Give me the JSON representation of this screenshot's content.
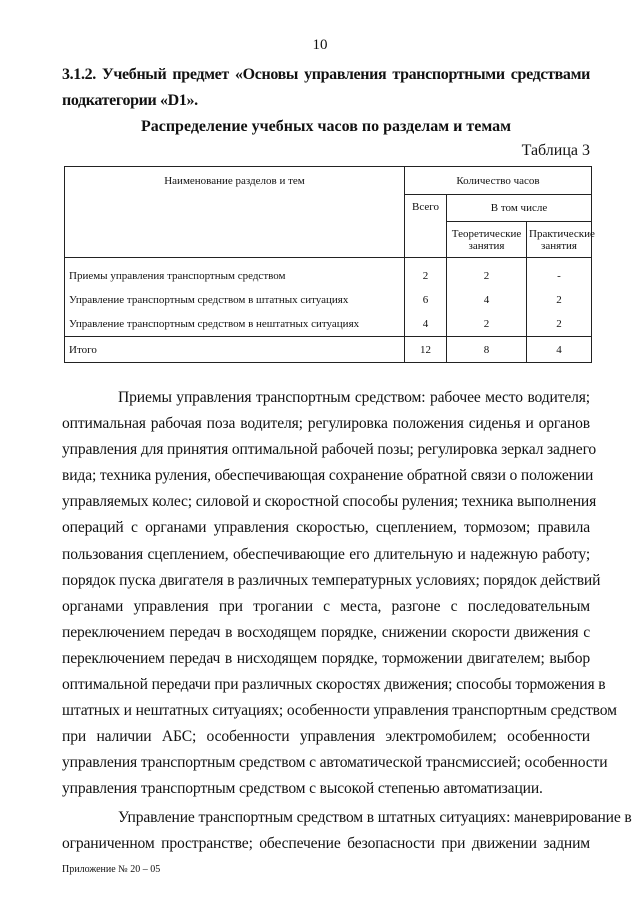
{
  "page_number": "10",
  "heading_lines": [
    "3.1.2. Учебный предмет «Основы управления транспортными средствами",
    "подкатегории «D1»."
  ],
  "subheading": "Распределение учебных часов по разделам и темам",
  "table_label": "Таблица 3",
  "table": {
    "col_name": "Наименование разделов и тем",
    "col_hours": "Количество часов",
    "col_total": "Всего",
    "col_including": "В том числе",
    "col_theory": "Теоретические занятия",
    "col_practice": "Практические занятия",
    "rows": [
      {
        "name": "Приемы управления транспортным средством",
        "total": "2",
        "theory": "2",
        "practice": "-"
      },
      {
        "name": "Управление транспортным средством в штатных ситуациях",
        "total": "6",
        "theory": "4",
        "practice": "2"
      },
      {
        "name": "Управление транспортным средством в нештатных ситуациях",
        "total": "4",
        "theory": "2",
        "practice": "2"
      }
    ],
    "total_row": {
      "name": "Итого",
      "total": "12",
      "theory": "8",
      "practice": "4"
    }
  },
  "paragraphs": [
    [
      "Приемы управления транспортным средством: рабочее место водителя;",
      "оптимальная рабочая поза водителя; регулировка положения сиденья и органов",
      "управления для принятия оптимальной рабочей позы; регулировка зеркал заднего",
      "вида; техника руления, обеспечивающая сохранение обратной связи о положении",
      "управляемых колес; силовой и скоростной способы руления; техника выполнения",
      "операций с органами управления скоростью, сцеплением, тормозом; правила",
      "пользования сцеплением, обеспечивающие его длительную и надежную работу;",
      "порядок пуска двигателя в различных температурных условиях; порядок действий",
      "органами управления при трогании с места, разгоне с последовательным",
      "переключением передач в восходящем порядке, снижении скорости движения с",
      "переключением передач в нисходящем порядке, торможении двигателем; выбор",
      "оптимальной передачи при различных скоростях движения; способы торможения в",
      "штатных и нештатных ситуациях; особенности управления транспортным средством",
      "при наличии АБС; особенности управления электромобилем; особенности",
      "управления транспортным средством с автоматической трансмиссией; особенности",
      "управления транспортным средством с высокой степенью автоматизации."
    ],
    [
      "Управление транспортным средством в штатных ситуациях: маневрирование в",
      "ограниченном пространстве; обеспечение безопасности при движении задним"
    ]
  ],
  "footer": "Приложение № 20 – 05"
}
